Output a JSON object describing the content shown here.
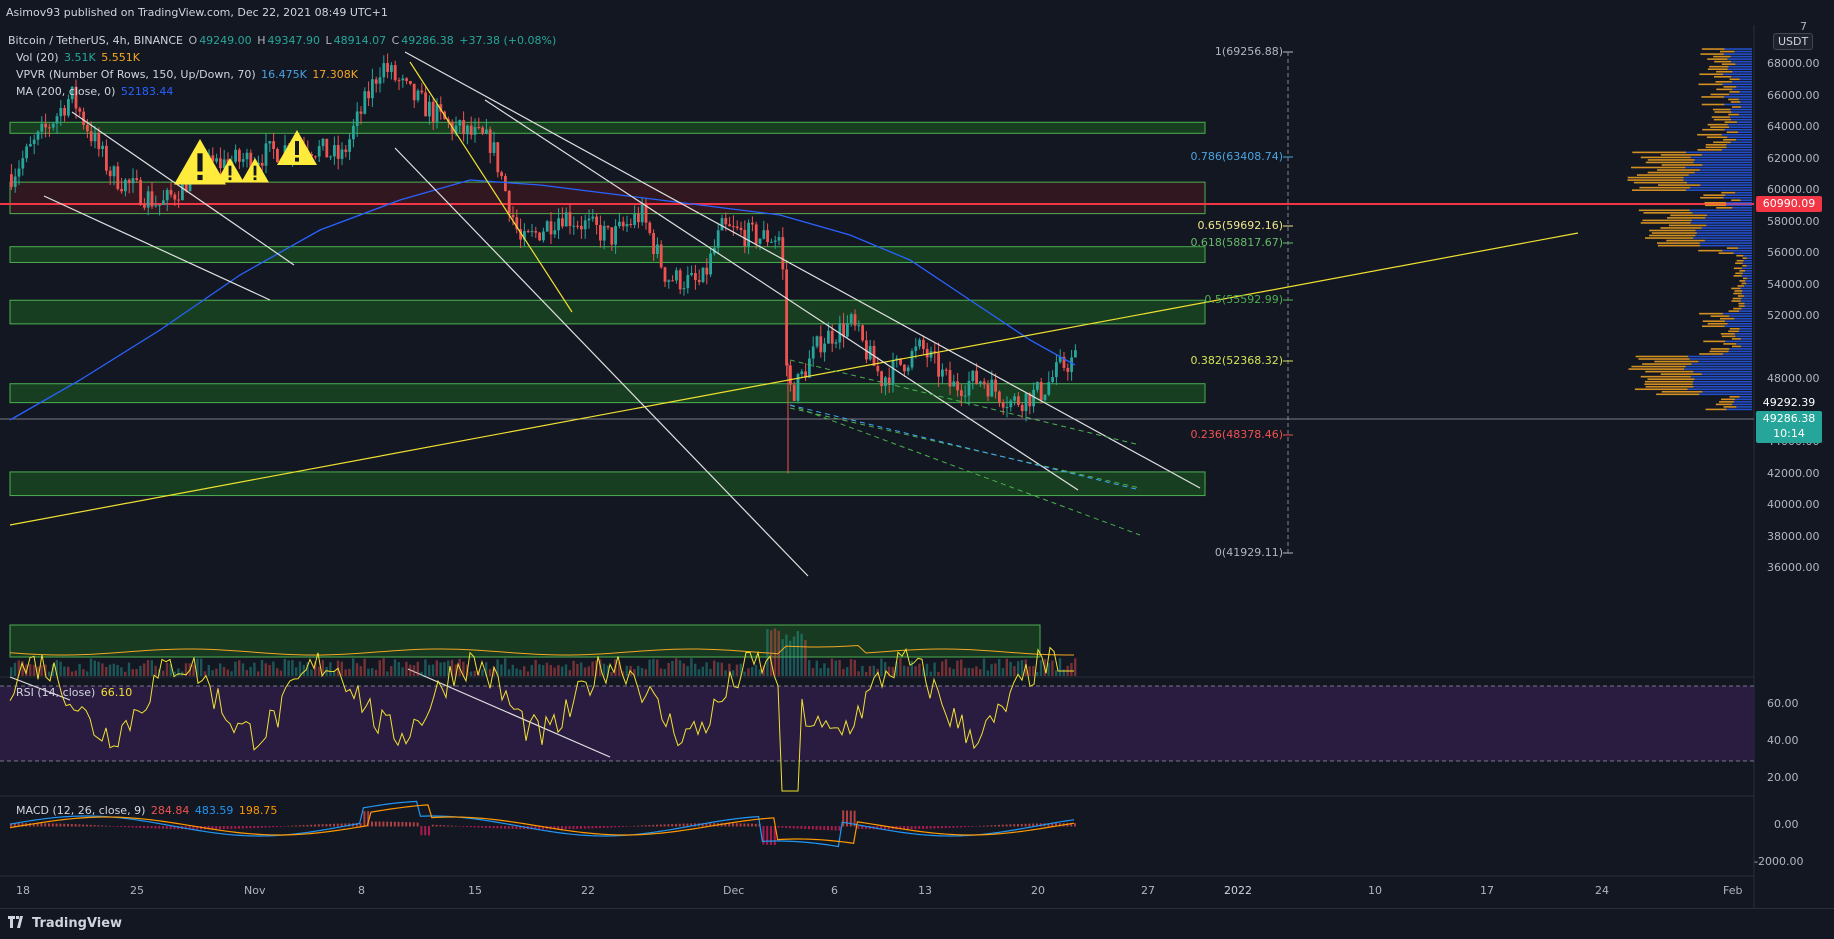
{
  "publisher": "Asimov93 published on TradingView.com, Dec 22, 2021 08:49 UTC+1",
  "legend": {
    "symbol": "Bitcoin / TetherUS, 4h, BINANCE",
    "o_label": "O",
    "o": "49249.00",
    "h_label": "H",
    "h": "49347.90",
    "l_label": "L",
    "l": "48914.07",
    "c_label": "C",
    "c": "49286.38",
    "change": "+37.38 (+0.08%)",
    "vol_label": "Vol (20)",
    "vol1": "3.51K",
    "vol2": "5.551K",
    "vpvr_label": "VPVR (Number Of Rows, 150, Up/Down, 70)",
    "vpvr1": "16.475K",
    "vpvr2": "17.308K",
    "ma_label": "MA (200, close, 0)",
    "ma": "52183.44"
  },
  "currency": "USDT",
  "price_axis": [
    "68000.00",
    "66000.00",
    "64000.00",
    "62000.00",
    "60000.00",
    "58000.00",
    "56000.00",
    "54000.00",
    "52000.00",
    "48000.00",
    "46000.00",
    "44000.00",
    "42000.00",
    "40000.00",
    "38000.00",
    "36000.00"
  ],
  "price_axis_top": "7",
  "price_tags": {
    "red_level": "60990.09",
    "last_price": "49292.39",
    "current": "49286.38",
    "countdown": "10:14"
  },
  "fib_levels": [
    {
      "label": "1(69256.88)",
      "color": "#b2b5be"
    },
    {
      "label": "0.786(63408.74)",
      "color": "#4aa3df"
    },
    {
      "label": "0.65(59692.16)",
      "color": "#f0e68c"
    },
    {
      "label": "0.618(58817.67)",
      "color": "#66bb6a"
    },
    {
      "label": "0.5(55592.99)",
      "color": "#4caf50"
    },
    {
      "label": "0.382(52368.32)",
      "color": "#d4e157"
    },
    {
      "label": "0.236(48378.46)",
      "color": "#ef5350"
    },
    {
      "label": "0(41929.11)",
      "color": "#b2b5be"
    }
  ],
  "rsi": {
    "label": "RSI (14, close)",
    "value": "66.10",
    "axis": [
      "60.00",
      "40.00",
      "20.00"
    ]
  },
  "macd": {
    "label": "MACD (12, 26, close, 9)",
    "v1": "284.84",
    "v2": "483.59",
    "v3": "198.75",
    "axis": [
      "0.00",
      "-2000.00"
    ]
  },
  "time_axis": [
    "18",
    "25",
    "Nov",
    "8",
    "15",
    "22",
    "Dec",
    "6",
    "13",
    "20",
    "27",
    "2022",
    "10",
    "17",
    "24",
    "Feb"
  ],
  "brand": "TradingView",
  "colors": {
    "up": "#26a69a",
    "down": "#ef5350",
    "ma": "#2962ff",
    "fib_zone": "#1b5e20",
    "red_zone": "#5d1a1f",
    "rsi_bg": "#2f1d46"
  }
}
